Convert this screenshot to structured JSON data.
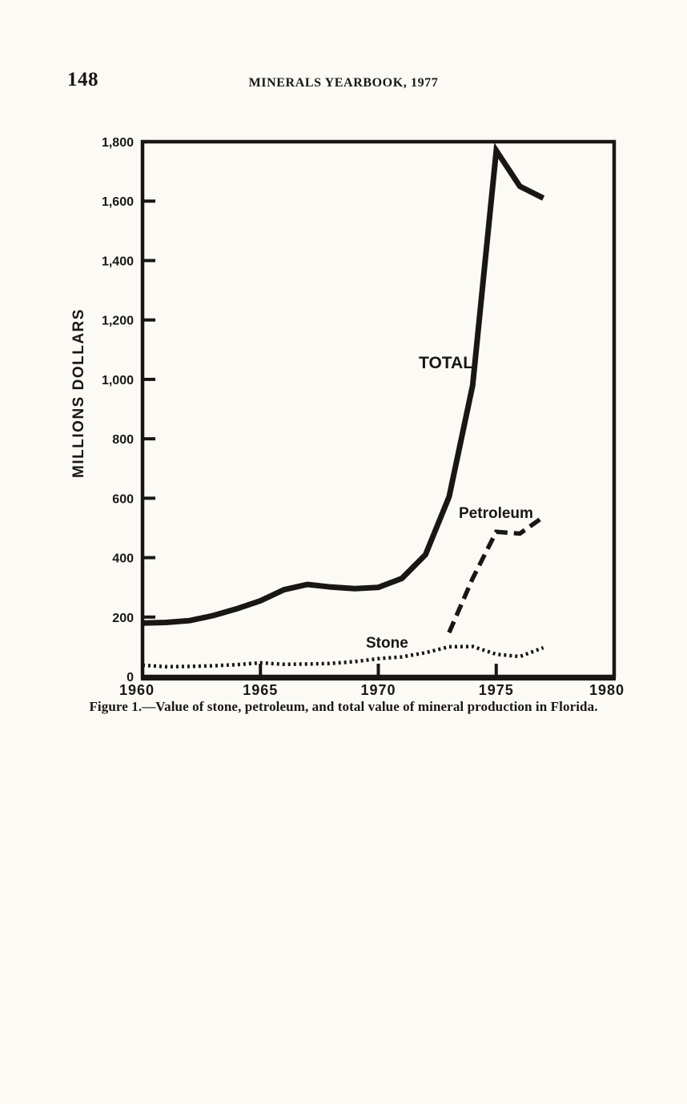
{
  "page": {
    "number": "148",
    "running_title": "MINERALS YEARBOOK, 1977",
    "caption": "Figure 1.—Value of stone, petroleum, and total value of mineral production in Florida."
  },
  "colors": {
    "ink": "#191715",
    "paper": "#fbfaf5"
  },
  "chart_data": {
    "type": "line",
    "title": "",
    "xlabel": "",
    "ylabel": "MILLIONS DOLLARS",
    "xlim": [
      1960,
      1980
    ],
    "ylim": [
      0,
      1800
    ],
    "grid": false,
    "legend": "inline-labels",
    "x_ticks": [
      1960,
      1965,
      1970,
      1975,
      1980
    ],
    "x_tick_labels": [
      "1960",
      "1965",
      "1970",
      "1975",
      "1980"
    ],
    "y_ticks": [
      0,
      200,
      400,
      600,
      800,
      1000,
      1200,
      1400,
      1600,
      1800
    ],
    "y_tick_labels": [
      "0",
      "200",
      "400",
      "600",
      "800",
      "1,000",
      "1,200",
      "1,400",
      "1,600",
      "1,800"
    ],
    "series": [
      {
        "name": "TOTAL",
        "style": "solid",
        "points": [
          [
            1960,
            180
          ],
          [
            1961,
            182
          ],
          [
            1962,
            188
          ],
          [
            1963,
            205
          ],
          [
            1964,
            228
          ],
          [
            1965,
            255
          ],
          [
            1966,
            292
          ],
          [
            1967,
            310
          ],
          [
            1968,
            301
          ],
          [
            1969,
            296
          ],
          [
            1970,
            300
          ],
          [
            1971,
            330
          ],
          [
            1972,
            410
          ],
          [
            1973,
            605
          ],
          [
            1974,
            980
          ],
          [
            1975,
            1770
          ],
          [
            1976,
            1650
          ],
          [
            1977,
            1610
          ]
        ]
      },
      {
        "name": "Petroleum",
        "style": "dashed",
        "points": [
          [
            1973,
            148
          ],
          [
            1974,
            330
          ],
          [
            1975,
            487
          ],
          [
            1976,
            481
          ],
          [
            1977,
            537
          ]
        ]
      },
      {
        "name": "Stone",
        "style": "dotted",
        "points": [
          [
            1960,
            38
          ],
          [
            1961,
            33
          ],
          [
            1962,
            34
          ],
          [
            1963,
            36
          ],
          [
            1964,
            40
          ],
          [
            1965,
            46
          ],
          [
            1966,
            41
          ],
          [
            1967,
            42
          ],
          [
            1968,
            44
          ],
          [
            1969,
            50
          ],
          [
            1970,
            60
          ],
          [
            1971,
            66
          ],
          [
            1972,
            80
          ],
          [
            1973,
            100
          ],
          [
            1974,
            101
          ],
          [
            1975,
            75
          ],
          [
            1976,
            67
          ],
          [
            1977,
            97
          ]
        ]
      }
    ]
  }
}
